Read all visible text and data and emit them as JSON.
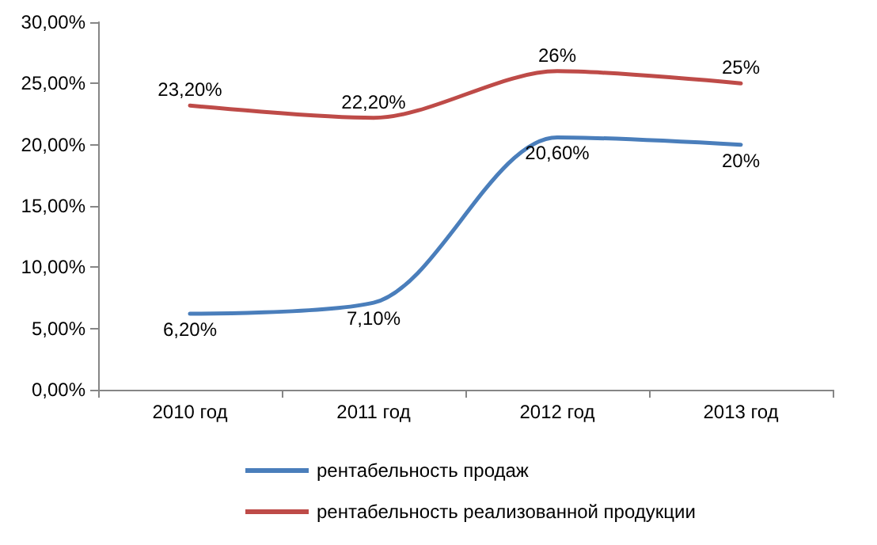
{
  "chart_data": {
    "type": "line",
    "categories": [
      "2010 год",
      "2011 год",
      "2012 год",
      "2013 год"
    ],
    "series": [
      {
        "name": "рентабельность продаж",
        "color": "#4a7ebb",
        "values": [
          6.2,
          7.1,
          20.6,
          20
        ],
        "value_labels": [
          "6,20%",
          "7,10%",
          "20,60%",
          "20%"
        ]
      },
      {
        "name": "рентабельность реализованной продукции",
        "color": "#be4b48",
        "values": [
          23.2,
          22.2,
          26,
          25
        ],
        "value_labels": [
          "23,20%",
          "22,20%",
          "26%",
          "25%"
        ]
      }
    ],
    "ylim": [
      0,
      30
    ],
    "yticks": [
      {
        "value": 0,
        "label": "0,00%"
      },
      {
        "value": 5,
        "label": "5,00%"
      },
      {
        "value": 10,
        "label": "10,00%"
      },
      {
        "value": 15,
        "label": "15,00%"
      },
      {
        "value": 20,
        "label": "20,00%"
      },
      {
        "value": 25,
        "label": "25,00%"
      },
      {
        "value": 30,
        "label": "30,00%"
      }
    ],
    "grid": false,
    "legend": "bottom",
    "marker": "none",
    "line_style": "solid"
  }
}
